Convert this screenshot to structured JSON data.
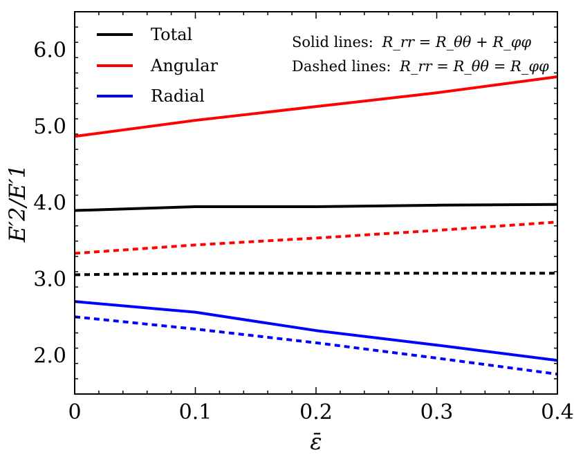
{
  "chart_data": {
    "type": "line",
    "title": "",
    "xlabel": "ε̄",
    "ylabel": "E′2/E′1",
    "xlim": [
      0,
      0.4
    ],
    "ylim": [
      1.5,
      6.5
    ],
    "x_ticks": [
      0,
      0.1,
      0.2,
      0.3,
      0.4
    ],
    "x_tick_labels": [
      "0",
      "0.1",
      "0.2",
      "0.3",
      "0.4"
    ],
    "y_ticks": [
      2.0,
      3.0,
      4.0,
      5.0,
      6.0
    ],
    "y_tick_labels": [
      "2.0",
      "3.0",
      "4.0",
      "5.0",
      "6.0"
    ],
    "legend": {
      "position": "top-left",
      "entries": [
        {
          "label": "Total",
          "color": "#000000"
        },
        {
          "label": "Angular",
          "color": "#ff0000"
        },
        {
          "label": "Radial",
          "color": "#0000ff"
        }
      ]
    },
    "annotations": {
      "solid_prefix": "Solid lines:",
      "solid_eq": "R_rr = R_θθ + R_φφ",
      "dashed_prefix": "Dashed lines:",
      "dashed_eq": "R_rr = R_θθ = R_φφ"
    },
    "x": [
      0,
      0.1,
      0.2,
      0.3,
      0.4
    ],
    "series": [
      {
        "name": "Total (solid)",
        "color": "#000000",
        "dashed": false,
        "values": [
          3.9,
          3.95,
          3.95,
          3.97,
          3.98
        ]
      },
      {
        "name": "Angular (solid)",
        "color": "#ff0000",
        "dashed": false,
        "values": [
          4.87,
          5.08,
          5.26,
          5.44,
          5.65
        ]
      },
      {
        "name": "Radial (solid)",
        "color": "#0000ff",
        "dashed": false,
        "values": [
          2.71,
          2.57,
          2.33,
          2.14,
          1.94
        ]
      },
      {
        "name": "Total (dashed)",
        "color": "#000000",
        "dashed": true,
        "values": [
          3.06,
          3.08,
          3.08,
          3.08,
          3.08
        ]
      },
      {
        "name": "Angular (dashed)",
        "color": "#ff0000",
        "dashed": true,
        "values": [
          3.34,
          3.45,
          3.54,
          3.64,
          3.75
        ]
      },
      {
        "name": "Radial (dashed)",
        "color": "#0000ff",
        "dashed": true,
        "values": [
          2.51,
          2.35,
          2.17,
          1.97,
          1.76
        ]
      }
    ]
  }
}
